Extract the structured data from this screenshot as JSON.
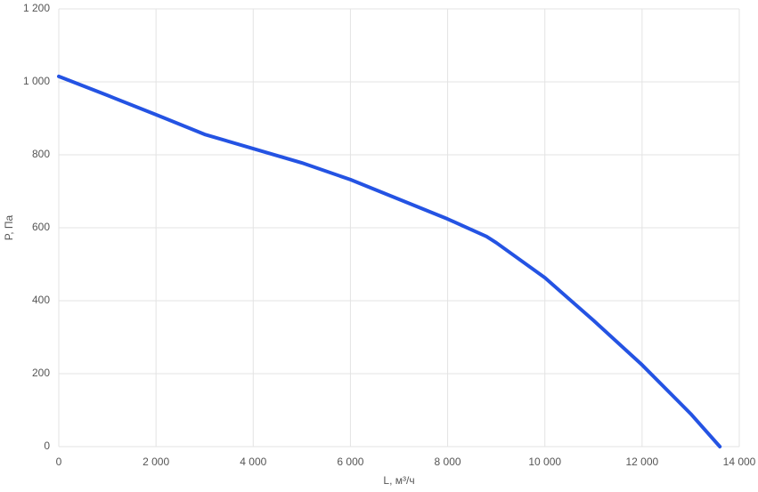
{
  "chart_data": {
    "type": "line",
    "x_label": "L, м³/ч",
    "y_label": "P, Па",
    "x": [
      0,
      1000,
      2000,
      3000,
      4000,
      5000,
      6000,
      7000,
      8000,
      8800,
      9000,
      10000,
      11000,
      12000,
      13000,
      13600
    ],
    "values": [
      1015,
      963,
      910,
      856,
      817,
      778,
      732,
      678,
      624,
      576,
      559,
      463,
      346,
      224,
      90,
      0
    ],
    "color": "#2453e3",
    "xlim": [
      0,
      14000
    ],
    "xticks": [
      0,
      {
        "value": 2000,
        "label": "2 000"
      },
      {
        "value": 4000,
        "label": "4 000"
      },
      {
        "value": 6000,
        "label": "6 000"
      },
      {
        "value": 8000,
        "label": "8 000"
      },
      {
        "value": 10000,
        "label": "10 000"
      },
      {
        "value": 12000,
        "label": "12 000"
      },
      {
        "value": 14000,
        "label": "14 000"
      }
    ],
    "ylim": [
      0,
      1200
    ],
    "yticks": [
      0,
      200,
      400,
      600,
      800,
      {
        "value": 1000,
        "label": "1 000"
      },
      {
        "value": 1200,
        "label": "1 200"
      }
    ],
    "grid": true
  }
}
